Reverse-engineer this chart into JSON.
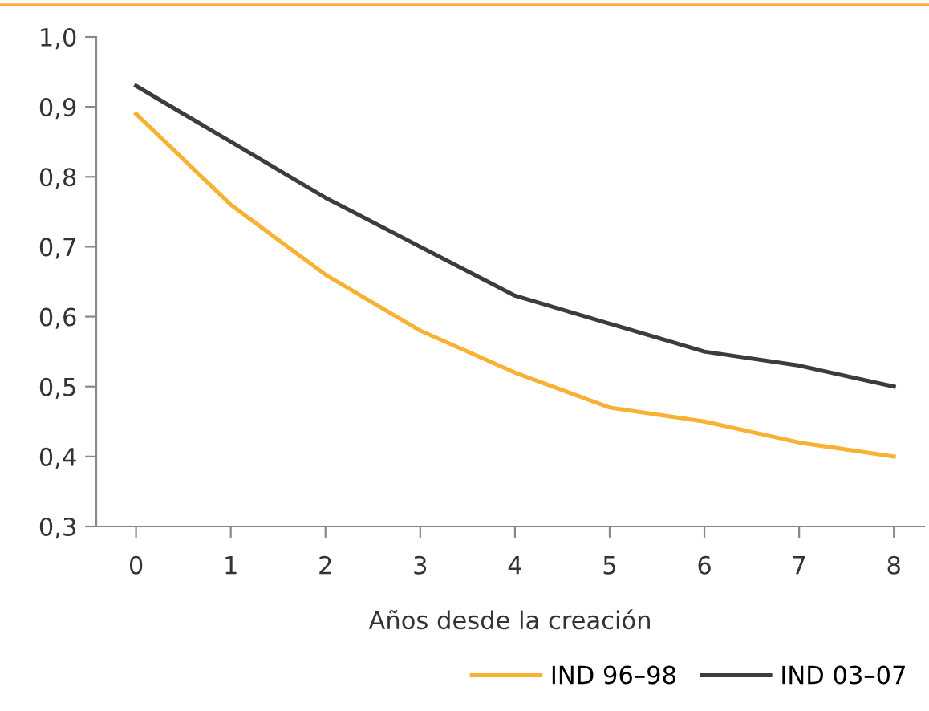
{
  "chart_data": {
    "type": "line",
    "xlabel": "Años desde la creación",
    "x": [
      0,
      1,
      2,
      3,
      4,
      5,
      6,
      7,
      8
    ],
    "series": [
      {
        "name": "IND 96–98",
        "color": "#f8b133",
        "values": [
          0.89,
          0.76,
          0.66,
          0.58,
          0.52,
          0.47,
          0.45,
          0.42,
          0.4
        ]
      },
      {
        "name": "IND 03–07",
        "color": "#3c3c3c",
        "values": [
          0.93,
          0.85,
          0.77,
          0.7,
          0.63,
          0.59,
          0.55,
          0.53,
          0.5
        ]
      }
    ],
    "xlim": [
      -0.42,
      8.32
    ],
    "xticks": [
      0,
      1,
      2,
      3,
      4,
      5,
      6,
      7,
      8
    ],
    "ylim": [
      0.3,
      1.0
    ],
    "yticks": [
      {
        "value": 0.3,
        "label": "0,3"
      },
      {
        "value": 0.4,
        "label": "0,4"
      },
      {
        "value": 0.5,
        "label": "0,5"
      },
      {
        "value": 0.6,
        "label": "0,6"
      },
      {
        "value": 0.7,
        "label": "0,7"
      },
      {
        "value": 0.8,
        "label": "0,8"
      },
      {
        "value": 0.9,
        "label": "0,9"
      },
      {
        "value": 1.0,
        "label": "1,0"
      }
    ],
    "grid": false,
    "legend": "bottom right",
    "marker": "none",
    "line_style": "solid"
  }
}
